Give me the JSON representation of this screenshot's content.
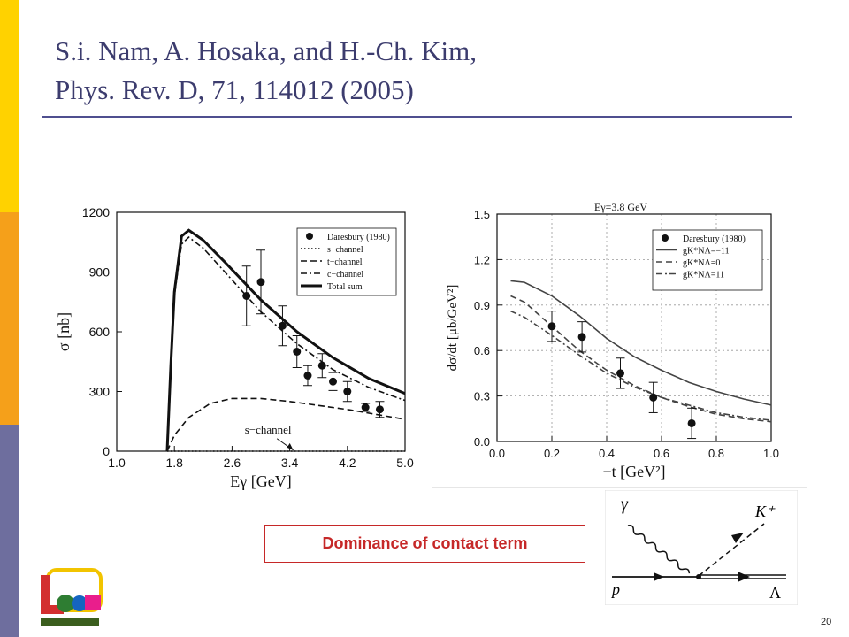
{
  "slide": {
    "title_line1": "S.i. Nam, A. Hosaka, and H.-Ch. Kim,",
    "title_line2": "Phys. Rev. D, 71, 114012 (2005)",
    "callout": "Dominance of contact term",
    "page_number": "20"
  },
  "colors": {
    "bar_top": "#FFD200",
    "bar_mid": "#F5A01A",
    "bar_bottom": "#6E6E9E",
    "title": "#3C3C6E",
    "callout": "#C62828"
  },
  "chart_data": [
    {
      "type": "line",
      "xlabel": "Eγ [GeV]",
      "ylabel": "σ [nb]",
      "xlim": [
        1.0,
        5.0
      ],
      "ylim": [
        0,
        1200
      ],
      "xticks": [
        "1.0",
        "1.8",
        "2.6",
        "3.4",
        "4.2",
        "5.0"
      ],
      "yticks": [
        "0",
        "300",
        "600",
        "900",
        "1200"
      ],
      "legend_position": "top-right",
      "annotation": "s−channel",
      "series": [
        {
          "name": "s−channel",
          "style": "dotted",
          "x": [
            1.7,
            5.0
          ],
          "y": [
            0,
            0
          ]
        },
        {
          "name": "t−channel",
          "style": "dashed",
          "x": [
            1.7,
            1.8,
            2.0,
            2.3,
            2.6,
            3.0,
            3.4,
            3.8,
            4.2,
            4.6,
            5.0
          ],
          "y": [
            0,
            80,
            170,
            240,
            265,
            265,
            250,
            230,
            210,
            185,
            160
          ]
        },
        {
          "name": "c−channel",
          "style": "dashdot",
          "x": [
            1.7,
            1.75,
            1.8,
            1.9,
            2.0,
            2.2,
            2.5,
            3.0,
            3.5,
            4.0,
            4.5,
            5.0
          ],
          "y": [
            0,
            420,
            780,
            1040,
            1075,
            1020,
            900,
            700,
            540,
            410,
            320,
            255
          ]
        },
        {
          "name": "Total sum",
          "style": "solid-bold",
          "x": [
            1.7,
            1.75,
            1.8,
            1.9,
            2.0,
            2.2,
            2.5,
            3.0,
            3.5,
            4.0,
            4.5,
            5.0
          ],
          "y": [
            0,
            430,
            800,
            1080,
            1110,
            1060,
            950,
            760,
            600,
            470,
            365,
            290
          ]
        }
      ],
      "data_points": {
        "name": "Daresbury (1980)",
        "x": [
          2.8,
          3.0,
          3.3,
          3.5,
          3.65,
          3.85,
          4.0,
          4.2,
          4.45,
          4.65
        ],
        "y": [
          780,
          850,
          630,
          500,
          380,
          430,
          350,
          300,
          220,
          210
        ],
        "err": [
          150,
          160,
          100,
          80,
          50,
          60,
          45,
          50,
          20,
          40
        ]
      }
    },
    {
      "type": "line",
      "title": "Eγ=3.8 GeV",
      "xlabel": "−t [GeV²]",
      "ylabel": "dσ/dt [μb/GeV²]",
      "xlim": [
        0.0,
        1.0
      ],
      "ylim": [
        0.0,
        1.5
      ],
      "xticks": [
        "0.0",
        "0.2",
        "0.4",
        "0.6",
        "0.8",
        "1.0"
      ],
      "yticks": [
        "0.0",
        "0.3",
        "0.6",
        "0.9",
        "1.2",
        "1.5"
      ],
      "legend_position": "top-right",
      "series": [
        {
          "name": "gK*NΛ=−11",
          "style": "solid",
          "x": [
            0.05,
            0.1,
            0.2,
            0.3,
            0.4,
            0.5,
            0.6,
            0.7,
            0.8,
            0.9,
            1.0
          ],
          "y": [
            1.06,
            1.05,
            0.96,
            0.83,
            0.68,
            0.56,
            0.47,
            0.39,
            0.33,
            0.28,
            0.24
          ]
        },
        {
          "name": "gK*NΛ=0",
          "style": "dashed",
          "x": [
            0.05,
            0.1,
            0.2,
            0.3,
            0.4,
            0.5,
            0.6,
            0.7,
            0.8,
            0.9,
            1.0
          ],
          "y": [
            0.96,
            0.92,
            0.76,
            0.6,
            0.47,
            0.37,
            0.29,
            0.23,
            0.18,
            0.15,
            0.13
          ]
        },
        {
          "name": "gK*NΛ=11",
          "style": "dashdot",
          "x": [
            0.05,
            0.1,
            0.2,
            0.3,
            0.4,
            0.5,
            0.6,
            0.7,
            0.8,
            0.9,
            1.0
          ],
          "y": [
            0.86,
            0.82,
            0.7,
            0.57,
            0.45,
            0.36,
            0.29,
            0.24,
            0.19,
            0.16,
            0.14
          ]
        }
      ],
      "data_points": {
        "name": "Daresbury (1980)",
        "x": [
          0.2,
          0.31,
          0.45,
          0.57,
          0.71
        ],
        "y": [
          0.76,
          0.69,
          0.45,
          0.29,
          0.12
        ],
        "err": [
          0.1,
          0.1,
          0.1,
          0.1,
          0.1
        ]
      }
    }
  ],
  "diagram": {
    "labels": {
      "gamma": "γ",
      "kaon": "K⁺",
      "proton": "p",
      "lambda": "Λ"
    }
  }
}
